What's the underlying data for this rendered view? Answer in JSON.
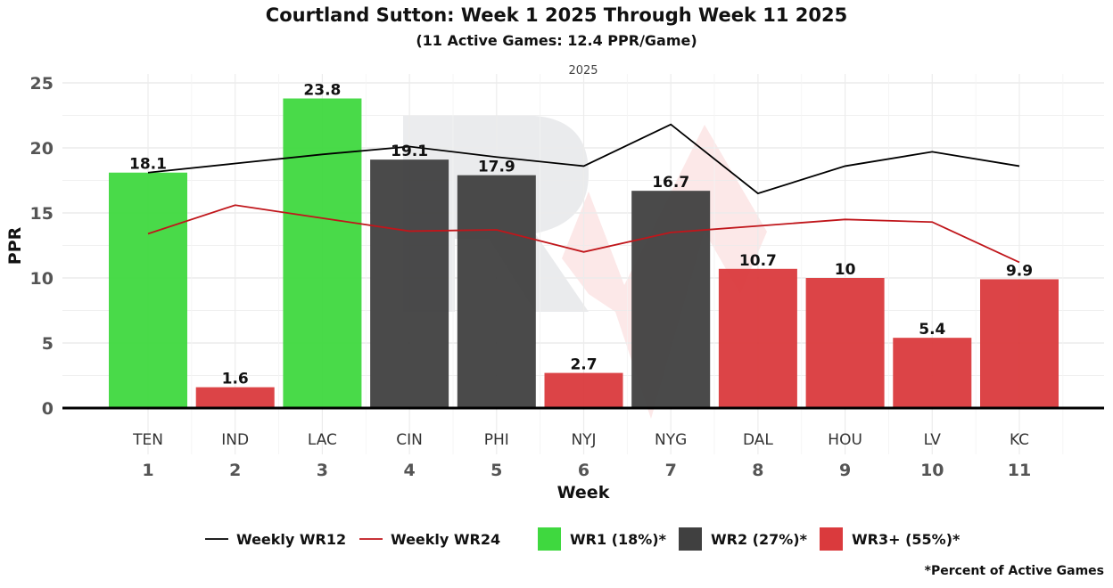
{
  "chart_data": {
    "type": "bar",
    "title": "Courtland Sutton: Week 1 2025 Through Week 11 2025",
    "subtitle": "(11 Active Games: 12.4 PPR/Game)",
    "facet_label": "2025",
    "xlabel": "Week",
    "ylabel": "PPR",
    "ylim": [
      0,
      25
    ],
    "yticks": [
      0,
      5,
      10,
      15,
      20,
      25
    ],
    "weeks": [
      "1",
      "2",
      "3",
      "4",
      "5",
      "6",
      "7",
      "8",
      "9",
      "10",
      "11"
    ],
    "opponents": [
      "TEN",
      "IND",
      "LAC",
      "CIN",
      "PHI",
      "NYJ",
      "NYG",
      "DAL",
      "HOU",
      "LV",
      "KC"
    ],
    "values": [
      18.1,
      1.6,
      23.8,
      19.1,
      17.9,
      2.7,
      16.7,
      10.7,
      10,
      5.4,
      9.9
    ],
    "value_labels": [
      "18.1",
      "1.6",
      "23.8",
      "19.1",
      "17.9",
      "2.7",
      "16.7",
      "10.7",
      "10",
      "5.4",
      "9.9"
    ],
    "tiers": [
      "WR1",
      "WR3+",
      "WR1",
      "WR2",
      "WR2",
      "WR3+",
      "WR2",
      "WR3+",
      "WR3+",
      "WR3+",
      "WR3+"
    ],
    "lines": [
      {
        "name": "Weekly WR12",
        "color": "#000000",
        "values": [
          18.1,
          18.8,
          19.5,
          20.1,
          19.3,
          18.6,
          21.8,
          16.5,
          18.6,
          19.7,
          18.6
        ]
      },
      {
        "name": "Weekly WR24",
        "color": "#c0161b",
        "values": [
          13.4,
          15.6,
          14.6,
          13.6,
          13.7,
          12.0,
          13.5,
          14.0,
          14.5,
          14.3,
          11.2
        ]
      }
    ],
    "legend": [
      {
        "type": "line",
        "label": "Weekly WR12",
        "color": "#000000"
      },
      {
        "type": "line",
        "label": "Weekly WR24",
        "color": "#c0161b"
      },
      {
        "type": "box",
        "label": "WR1 (18%)*",
        "color": "#3fd83f"
      },
      {
        "type": "box",
        "label": "WR2 (27%)*",
        "color": "#404040"
      },
      {
        "type": "box",
        "label": "WR3+ (55%)*",
        "color": "#da3a3d"
      }
    ],
    "tier_colors": {
      "WR1": "#3fd83f",
      "WR2": "#404040",
      "WR3+": "#da3a3d"
    },
    "footnote": "*Percent of Active Games"
  }
}
